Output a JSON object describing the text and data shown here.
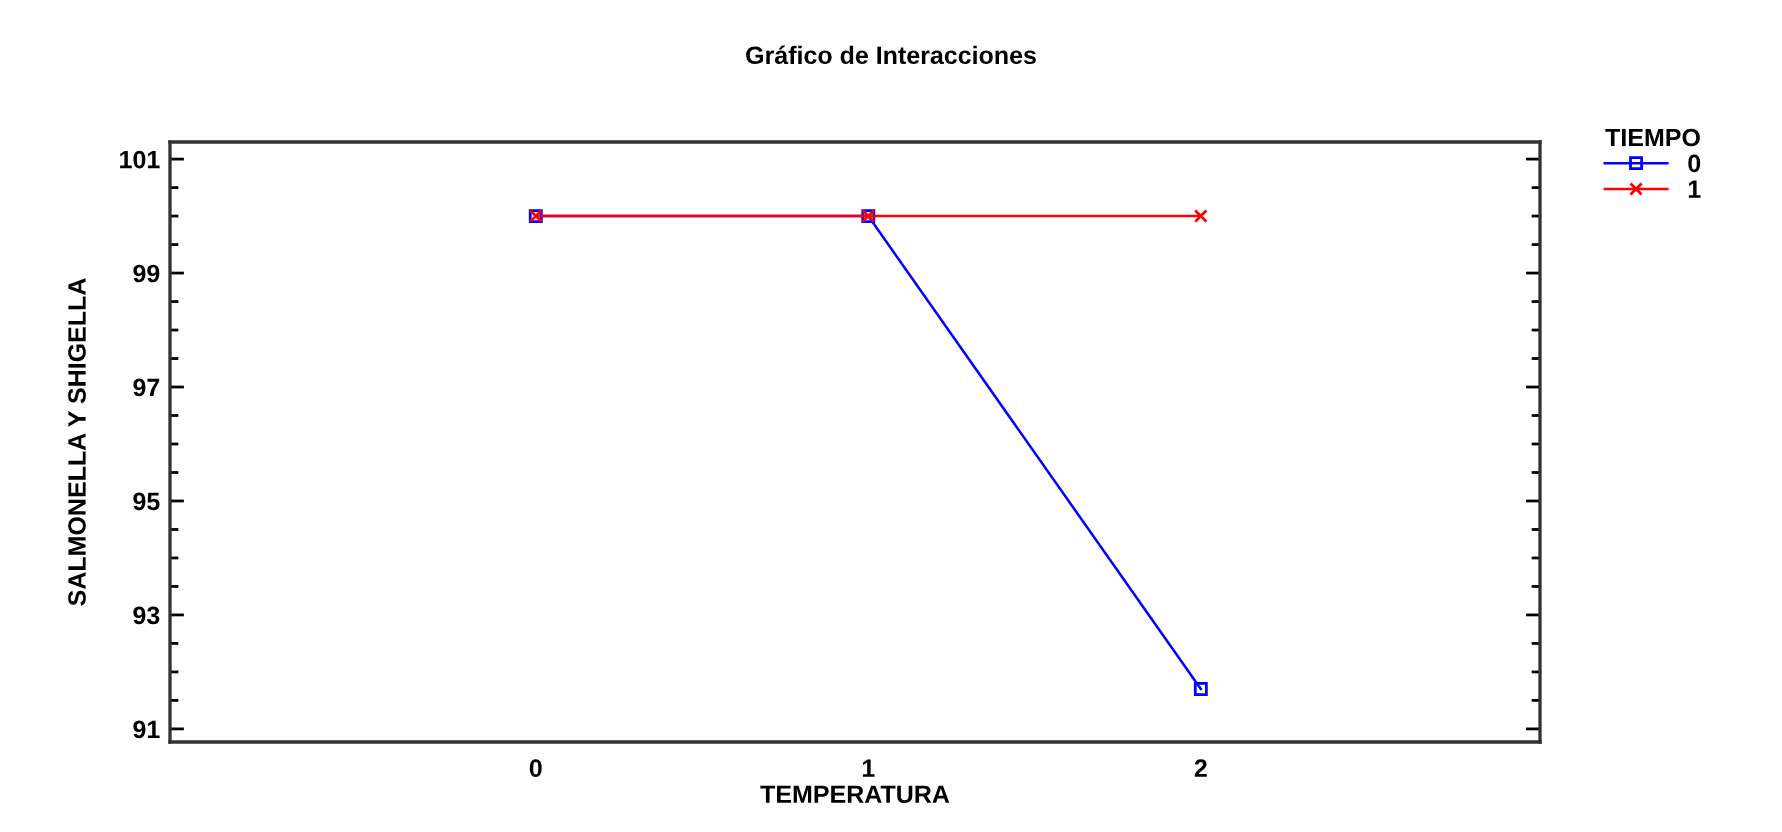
{
  "chart_data": {
    "type": "line",
    "title": "Gráfico de Interacciones",
    "xlabel": "TEMPERATURA",
    "ylabel": "SALMONELLA Y SHIGELLA",
    "legend_title": "TIEMPO",
    "legend": "top right",
    "x": [
      0,
      1,
      2
    ],
    "series": [
      {
        "name": "0",
        "color": "#0000ff",
        "marker": "square",
        "values": [
          100.0,
          100.0,
          91.7
        ]
      },
      {
        "name": "1",
        "color": "#ff0000",
        "marker": "cross",
        "values": [
          100.0,
          100.0,
          100.0
        ]
      }
    ],
    "xlim": [
      -1.1,
      3.02
    ],
    "xticks": [
      0,
      1,
      2
    ],
    "ylim": [
      90.77,
      101.3
    ],
    "yticks": [
      91,
      {
        "value": 91.5,
        "label": null
      },
      {
        "value": 92,
        "label": null
      },
      {
        "value": 92.5,
        "label": null
      },
      93,
      {
        "value": 93.5,
        "label": null
      },
      {
        "value": 94,
        "label": null
      },
      {
        "value": 94.5,
        "label": null
      },
      95,
      {
        "value": 95.5,
        "label": null
      },
      {
        "value": 96,
        "label": null
      },
      {
        "value": 96.5,
        "label": null
      },
      97,
      {
        "value": 97.5,
        "label": null
      },
      {
        "value": 98,
        "label": null
      },
      {
        "value": 98.5,
        "label": null
      },
      99,
      {
        "value": 99.5,
        "label": null
      },
      {
        "value": 100,
        "label": null
      },
      {
        "value": 100.5,
        "label": null
      },
      101
    ],
    "grid": false
  }
}
